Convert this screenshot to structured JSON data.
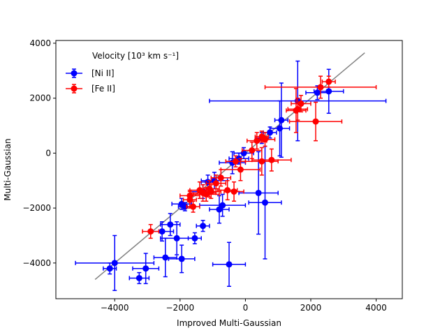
{
  "chart_data": {
    "type": "scatter",
    "title": "",
    "xlabel": "Improved Multi-Gaussian",
    "ylabel": "Multi-Gaussian",
    "xlim": [
      -5800,
      4800
    ],
    "ylim": [
      -5300,
      4100
    ],
    "xticks": [
      -4000,
      -2000,
      0,
      2000,
      4000
    ],
    "yticks": [
      -4000,
      -2000,
      0,
      2000,
      4000
    ],
    "grid": false,
    "legend": {
      "title": "Velocity [10³ km s⁻¹]",
      "position": "top-left"
    },
    "reference_line": {
      "x": [
        -4600,
        3650
      ],
      "y": [
        -4600,
        3650
      ],
      "color": "#808080"
    },
    "series": [
      {
        "name": "[Ni II]",
        "color": "#0000ff",
        "points": [
          {
            "x": -4000,
            "y": -4000,
            "xerr": 1200,
            "yerr": 1000
          },
          {
            "x": -4150,
            "y": -4200,
            "xerr": 200,
            "yerr": 200
          },
          {
            "x": -3250,
            "y": -4550,
            "xerr": 300,
            "yerr": 200
          },
          {
            "x": -3050,
            "y": -4200,
            "xerr": 400,
            "yerr": 550
          },
          {
            "x": -2450,
            "y": -3800,
            "xerr": 350,
            "yerr": 700
          },
          {
            "x": -1950,
            "y": -3850,
            "xerr": 400,
            "yerr": 500
          },
          {
            "x": -2100,
            "y": -3100,
            "xerr": 500,
            "yerr": 600
          },
          {
            "x": -1550,
            "y": -3100,
            "xerr": 200,
            "yerr": 200
          },
          {
            "x": -2550,
            "y": -2850,
            "xerr": 350,
            "yerr": 350
          },
          {
            "x": -2300,
            "y": -2600,
            "xerr": 300,
            "yerr": 400
          },
          {
            "x": -1300,
            "y": -2650,
            "xerr": 200,
            "yerr": 200
          },
          {
            "x": -1950,
            "y": -1850,
            "xerr": 300,
            "yerr": 200
          },
          {
            "x": -1850,
            "y": -1950,
            "xerr": 200,
            "yerr": 150
          },
          {
            "x": -800,
            "y": -2050,
            "xerr": 300,
            "yerr": 500
          },
          {
            "x": -700,
            "y": -1900,
            "xerr": 700,
            "yerr": 400
          },
          {
            "x": -500,
            "y": -4050,
            "xerr": 500,
            "yerr": 800
          },
          {
            "x": 400,
            "y": -1450,
            "xerr": 600,
            "yerr": 1500
          },
          {
            "x": 600,
            "y": -1800,
            "xerr": 500,
            "yerr": 2050
          },
          {
            "x": -1300,
            "y": -1400,
            "xerr": 400,
            "yerr": 250
          },
          {
            "x": -1150,
            "y": -1050,
            "xerr": 200,
            "yerr": 250
          },
          {
            "x": -950,
            "y": -1000,
            "xerr": 400,
            "yerr": 300
          },
          {
            "x": -400,
            "y": -350,
            "xerr": 400,
            "yerr": 400
          },
          {
            "x": -200,
            "y": -200,
            "xerr": 300,
            "yerr": 200
          },
          {
            "x": -50,
            "y": 0,
            "xerr": 300,
            "yerr": 200
          },
          {
            "x": 500,
            "y": 550,
            "xerr": 200,
            "yerr": 200
          },
          {
            "x": 750,
            "y": 750,
            "xerr": 200,
            "yerr": 200
          },
          {
            "x": 1100,
            "y": 1200,
            "xerr": 200,
            "yerr": 1350
          },
          {
            "x": 1050,
            "y": 900,
            "xerr": 300,
            "yerr": 1000
          },
          {
            "x": 1600,
            "y": 1900,
            "xerr": 2700,
            "yerr": 1450
          },
          {
            "x": 2200,
            "y": 2200,
            "xerr": 350,
            "yerr": 250
          },
          {
            "x": 2550,
            "y": 2250,
            "xerr": 450,
            "yerr": 800
          }
        ]
      },
      {
        "name": "[Fe II]",
        "color": "#ff0000",
        "points": [
          {
            "x": -2900,
            "y": -2850,
            "xerr": 250,
            "yerr": 250
          },
          {
            "x": -1700,
            "y": -1550,
            "xerr": 300,
            "yerr": 200
          },
          {
            "x": -1700,
            "y": -1700,
            "xerr": 200,
            "yerr": 300
          },
          {
            "x": -1600,
            "y": -1950,
            "xerr": 200,
            "yerr": 200
          },
          {
            "x": -1400,
            "y": -1350,
            "xerr": 300,
            "yerr": 300
          },
          {
            "x": -1300,
            "y": -1450,
            "xerr": 400,
            "yerr": 300
          },
          {
            "x": -1200,
            "y": -1500,
            "xerr": 400,
            "yerr": 250
          },
          {
            "x": -1100,
            "y": -1300,
            "xerr": 300,
            "yerr": 300
          },
          {
            "x": -1050,
            "y": -1400,
            "xerr": 300,
            "yerr": 250
          },
          {
            "x": -900,
            "y": -1100,
            "xerr": 300,
            "yerr": 300
          },
          {
            "x": -750,
            "y": -900,
            "xerr": 300,
            "yerr": 300
          },
          {
            "x": -550,
            "y": -1350,
            "xerr": 300,
            "yerr": 350
          },
          {
            "x": -350,
            "y": -1400,
            "xerr": 300,
            "yerr": 350
          },
          {
            "x": -300,
            "y": -300,
            "xerr": 300,
            "yerr": 200
          },
          {
            "x": -150,
            "y": -600,
            "xerr": 600,
            "yerr": 400
          },
          {
            "x": 200,
            "y": 100,
            "xerr": 300,
            "yerr": 300
          },
          {
            "x": 350,
            "y": 450,
            "xerr": 300,
            "yerr": 300
          },
          {
            "x": 500,
            "y": 600,
            "xerr": 200,
            "yerr": 200
          },
          {
            "x": 600,
            "y": 500,
            "xerr": 300,
            "yerr": 250
          },
          {
            "x": 500,
            "y": -300,
            "xerr": 500,
            "yerr": 500
          },
          {
            "x": 800,
            "y": -250,
            "xerr": 600,
            "yerr": 400
          },
          {
            "x": 1600,
            "y": 1600,
            "xerr": 300,
            "yerr": 400
          },
          {
            "x": 1700,
            "y": 1800,
            "xerr": 300,
            "yerr": 300
          },
          {
            "x": 2150,
            "y": 1150,
            "xerr": 800,
            "yerr": 700
          },
          {
            "x": 2300,
            "y": 2400,
            "xerr": 1700,
            "yerr": 400
          },
          {
            "x": 2550,
            "y": 2600,
            "xerr": 200,
            "yerr": 200
          },
          {
            "x": 1550,
            "y": 1550,
            "xerr": 300,
            "yerr": 800
          }
        ]
      }
    ]
  }
}
